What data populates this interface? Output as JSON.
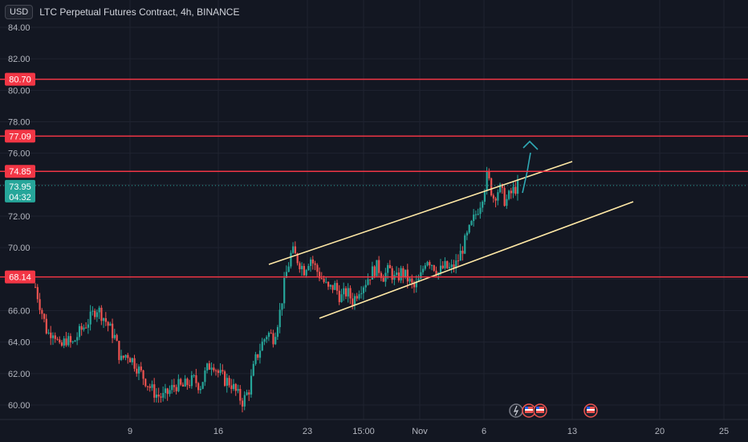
{
  "header": {
    "currency_button": "USD",
    "title": "LTC Perpetual Futures Contract, 4h, BINANCE"
  },
  "colors": {
    "background": "#131722",
    "grid": "#1f2330",
    "axis_text": "#b2b5be",
    "candle_up": "#26a69a",
    "candle_down": "#ef5350",
    "level_line": "#f23645",
    "channel_line": "#ffe9a6",
    "arrow": "#2fa9b5",
    "current_price_bg": "#26a69a"
  },
  "chart_data": {
    "type": "candlestick",
    "title": "LTC Perpetual Futures Contract, 4h, BINANCE",
    "y_axis": {
      "ticks": [
        "84.00",
        "82.00",
        "80.00",
        "78.00",
        "76.00",
        "72.00",
        "70.00",
        "66.00",
        "64.00",
        "62.00",
        "60.00"
      ],
      "ylim": [
        59.4,
        84.6
      ]
    },
    "x_axis": {
      "ticks": [
        "9",
        "16",
        "23",
        "15:00",
        "Nov",
        "6",
        "13",
        "20",
        "25"
      ]
    },
    "levels": [
      {
        "price": 80.7,
        "label": "80.70"
      },
      {
        "price": 77.09,
        "label": "77.09"
      },
      {
        "price": 74.85,
        "label": "74.85"
      },
      {
        "price": 68.14,
        "label": "68.14"
      }
    ],
    "current_price": {
      "label": "73.95",
      "countdown": "04:32",
      "value": 73.95
    },
    "channel": {
      "upper": {
        "from": {
          "date": "Oct 21",
          "price": 69.1
        },
        "to": {
          "date": "Nov 13",
          "price": 75.5
        }
      },
      "lower": {
        "from": {
          "date": "Oct 24",
          "price": 65.5
        },
        "to": {
          "date": "Nov 17",
          "price": 72.9
        }
      }
    },
    "arrow": {
      "from_price": 73.5,
      "to_price": 76.7
    },
    "ohlc_path": [
      67.5,
      66.0,
      64.5,
      64.8,
      63.5,
      64.2,
      63.8,
      64.5,
      65.0,
      65.5,
      66.2,
      65.7,
      65.0,
      64.3,
      62.8,
      63.3,
      62.8,
      62.2,
      61.6,
      61.0,
      60.6,
      60.5,
      60.9,
      61.3,
      61.1,
      61.4,
      61.6,
      61.2,
      62.2,
      62.8,
      62.0,
      61.6,
      61.4,
      60.7,
      60.2,
      61.0,
      62.8,
      63.8,
      64.6,
      64.3,
      65.8,
      68.2,
      69.8,
      69.2,
      68.6,
      69.4,
      68.6,
      68.0,
      67.3,
      67.6,
      66.8,
      67.2,
      66.6,
      67.4,
      67.8,
      68.4,
      68.8,
      68.2,
      68.6,
      67.9,
      68.5,
      68.0,
      67.4,
      68.0,
      69.4,
      69.0,
      68.4,
      68.8,
      68.6,
      69.0,
      70.0,
      71.0,
      72.0,
      73.0,
      74.6,
      73.2,
      73.8,
      72.9,
      73.5,
      73.95
    ],
    "markers": [
      {
        "icon": "lightning-icon"
      },
      {
        "icon": "us-flag-icon"
      },
      {
        "icon": "us-flag-icon"
      },
      {
        "icon": "us-flag-icon"
      }
    ]
  }
}
